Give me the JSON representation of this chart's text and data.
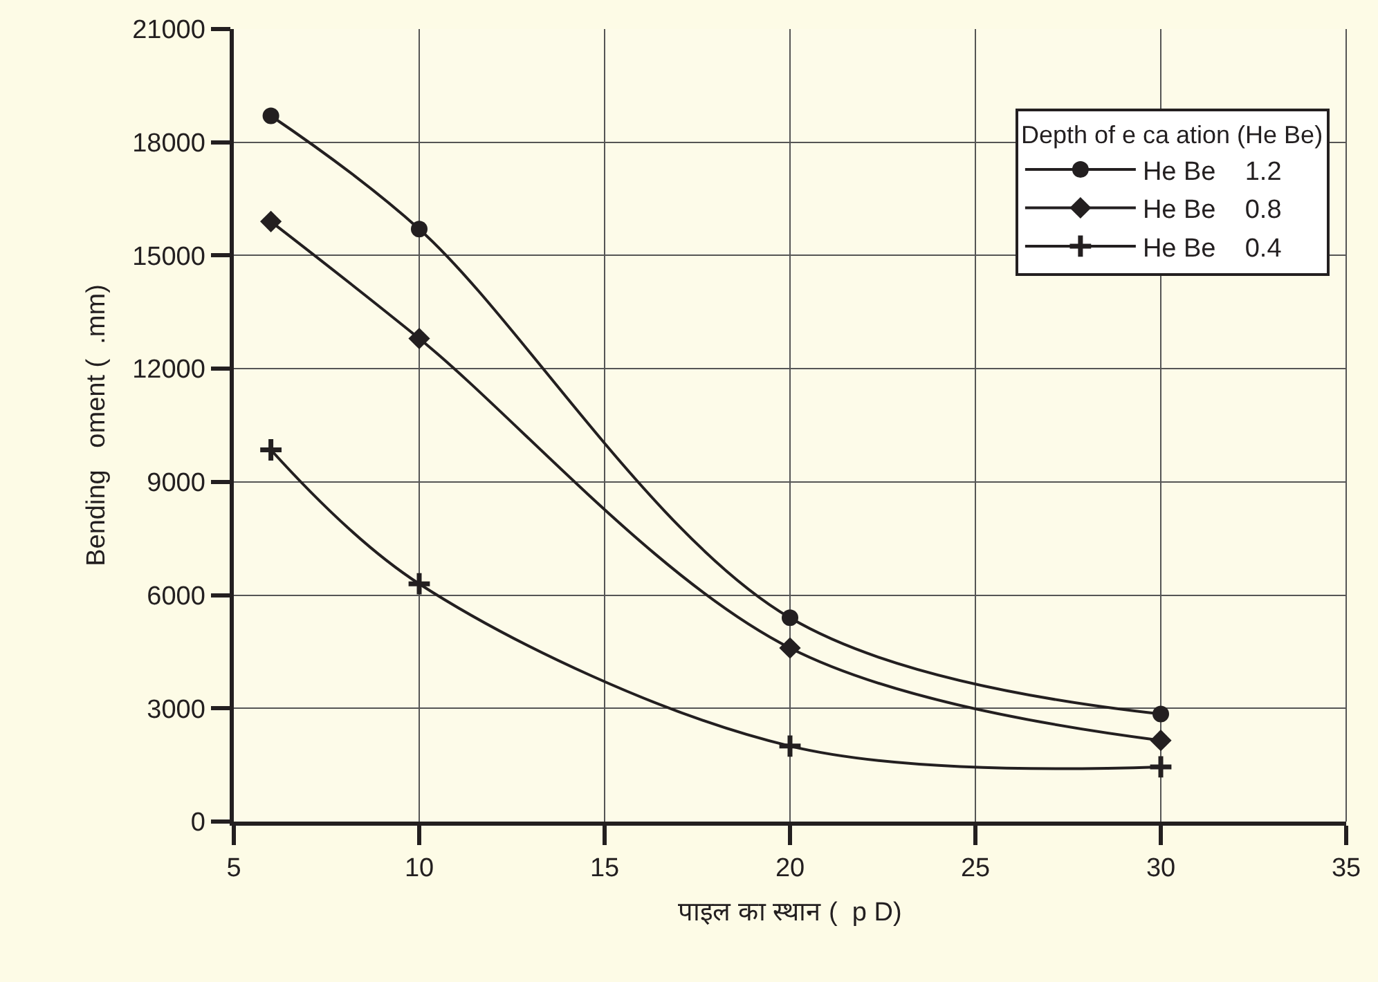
{
  "chart_data": {
    "type": "line",
    "xlabel": "पाइल का स्थान (  p D)",
    "ylabel": "Bending   oment (  .mm)",
    "legend_title": "Depth of e ca ation (He Be)",
    "x": [
      6,
      10,
      20,
      30
    ],
    "series": [
      {
        "name": "He Be    1.2",
        "color": "#231f20",
        "marker": "circle",
        "values": [
          18700,
          15700,
          5400,
          2850
        ]
      },
      {
        "name": "He Be    0.8",
        "color": "#231f20",
        "marker": "diamond",
        "values": [
          15900,
          12800,
          4600,
          2150
        ]
      },
      {
        "name": "He Be    0.4",
        "color": "#231f20",
        "marker": "cross",
        "values": [
          9850,
          6300,
          2000,
          1450
        ]
      }
    ],
    "xlim": [
      5,
      35
    ],
    "xticks": [
      5,
      10,
      15,
      20,
      25,
      30,
      35
    ],
    "ylim": [
      0,
      21000
    ],
    "yticks": [
      0,
      3000,
      6000,
      9000,
      12000,
      15000,
      18000,
      21000
    ],
    "grid": true,
    "legend": "top right",
    "line_style": "solid"
  }
}
